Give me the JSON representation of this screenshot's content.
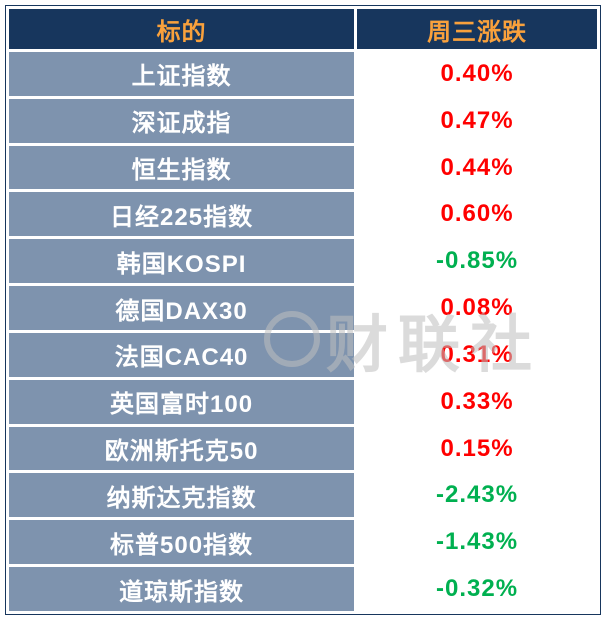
{
  "colors": {
    "header-bg": "#17365d",
    "header-text": "#f9a13c",
    "name-bg": "#7e93ae",
    "name-text": "#ffffff",
    "up": "#ff0000",
    "down": "#00b050",
    "grid": "#ffffff",
    "border": "#17365d",
    "watermark": "#bfbfbf"
  },
  "watermark": {
    "text": "财联社"
  },
  "chart_data": {
    "type": "table",
    "title": "",
    "columns": [
      "标的",
      "周三涨跌"
    ],
    "rows": [
      {
        "name": "上证指数",
        "change": "0.40%",
        "direction": "up"
      },
      {
        "name": "深证成指",
        "change": "0.47%",
        "direction": "up"
      },
      {
        "name": "恒生指数",
        "change": "0.44%",
        "direction": "up"
      },
      {
        "name": "日经225指数",
        "change": "0.60%",
        "direction": "up"
      },
      {
        "name": "韩国KOSPI",
        "change": "-0.85%",
        "direction": "down"
      },
      {
        "name": "德国DAX30",
        "change": "0.08%",
        "direction": "up"
      },
      {
        "name": "法国CAC40",
        "change": "0.31%",
        "direction": "up"
      },
      {
        "name": "英国富时100",
        "change": "0.33%",
        "direction": "up"
      },
      {
        "name": "欧洲斯托克50",
        "change": "0.15%",
        "direction": "up"
      },
      {
        "name": "纳斯达克指数",
        "change": "-2.43%",
        "direction": "down"
      },
      {
        "name": "标普500指数",
        "change": "-1.43%",
        "direction": "down"
      },
      {
        "name": "道琼斯指数",
        "change": "-0.32%",
        "direction": "down"
      }
    ]
  }
}
